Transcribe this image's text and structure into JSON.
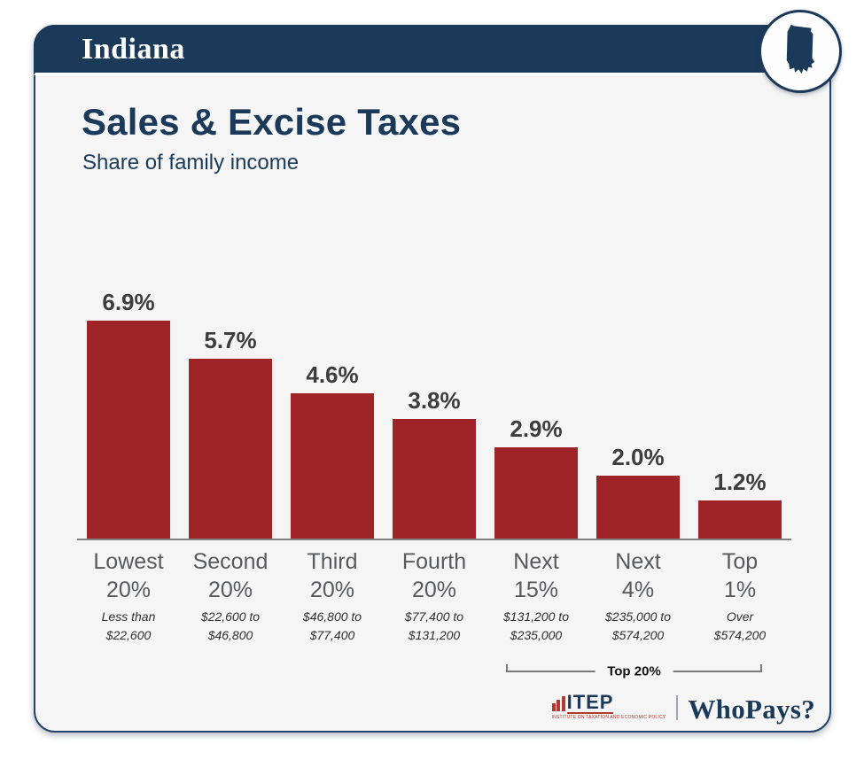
{
  "header": {
    "state": "Indiana"
  },
  "badge": {
    "icon": "indiana-state-icon"
  },
  "title": "Sales & Excise Taxes",
  "subtitle": "Share of family income",
  "chart_data": {
    "type": "bar",
    "title": "Sales & Excise Taxes",
    "subtitle": "Share of family income",
    "unit": "% of family income",
    "categories": [
      "Lowest 20%",
      "Second 20%",
      "Third 20%",
      "Fourth 20%",
      "Next 15%",
      "Next 4%",
      "Top 1%"
    ],
    "income_ranges": [
      "Less than $22,600",
      "$22,600 to $46,800",
      "$46,800 to $77,400",
      "$77,400 to $131,200",
      "$131,200 to $235,000",
      "$235,000 to $574,200",
      "Over $574,200"
    ],
    "values": [
      6.9,
      5.7,
      4.6,
      3.8,
      2.9,
      2.0,
      1.2
    ],
    "value_labels": [
      "6.9%",
      "5.7%",
      "4.6%",
      "3.8%",
      "2.9%",
      "2.0%",
      "1.2%"
    ],
    "ylim": [
      0,
      7.5
    ],
    "grid": false,
    "legend": "none",
    "bar_color": "#9e2428",
    "annotation": {
      "label": "Top 20%",
      "spans": [
        "Next 15%",
        "Next 4%",
        "Top 1%"
      ]
    }
  },
  "footer": {
    "itep_acronym": "ITEP",
    "itep_caption": "INSTITUTE ON TAXATION AND ECONOMIC POLICY",
    "itep_bars_icon": "bar-chart-icon",
    "whopays": "WhoPays?"
  },
  "colors": {
    "navy": "#1b3a5a",
    "bar_red": "#9e2428",
    "itep_red": "#b23b31",
    "card_bg": "#f5f5f6",
    "axis_gray": "#7f7f7f"
  }
}
